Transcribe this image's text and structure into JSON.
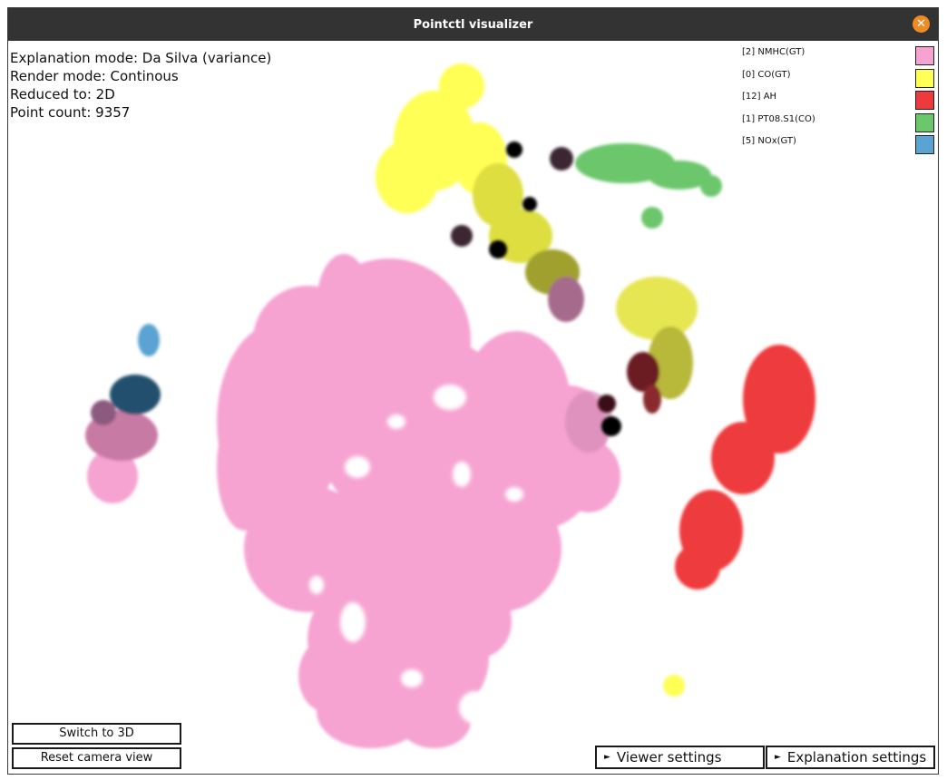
{
  "window": {
    "title": "Pointctl visualizer",
    "close_icon": "close-icon",
    "accent": "#f08a24"
  },
  "info": {
    "explanation_mode": "Explanation mode: Da Silva (variance)",
    "render_mode": "Render mode: Continous",
    "reduced_to": "Reduced to: 2D",
    "point_count": "Point count: 9357"
  },
  "legend": [
    {
      "label": "[2] NMHC(GT)",
      "color": "#f6a3d1"
    },
    {
      "label": "[0] CO(GT)",
      "color": "#ffff54"
    },
    {
      "label": "[12] AH",
      "color": "#ee3a3c"
    },
    {
      "label": "[1] PT08.S1(CO)",
      "color": "#6cc66c"
    },
    {
      "label": "[5] NOx(GT)",
      "color": "#5aa3d2"
    }
  ],
  "buttons": {
    "switch_3d": "Switch to 3D",
    "reset_camera": "Reset camera view",
    "viewer_settings": "Viewer settings",
    "explanation_settings": "Explanation settings"
  },
  "icons": {
    "expand": "triangle-right-icon"
  }
}
